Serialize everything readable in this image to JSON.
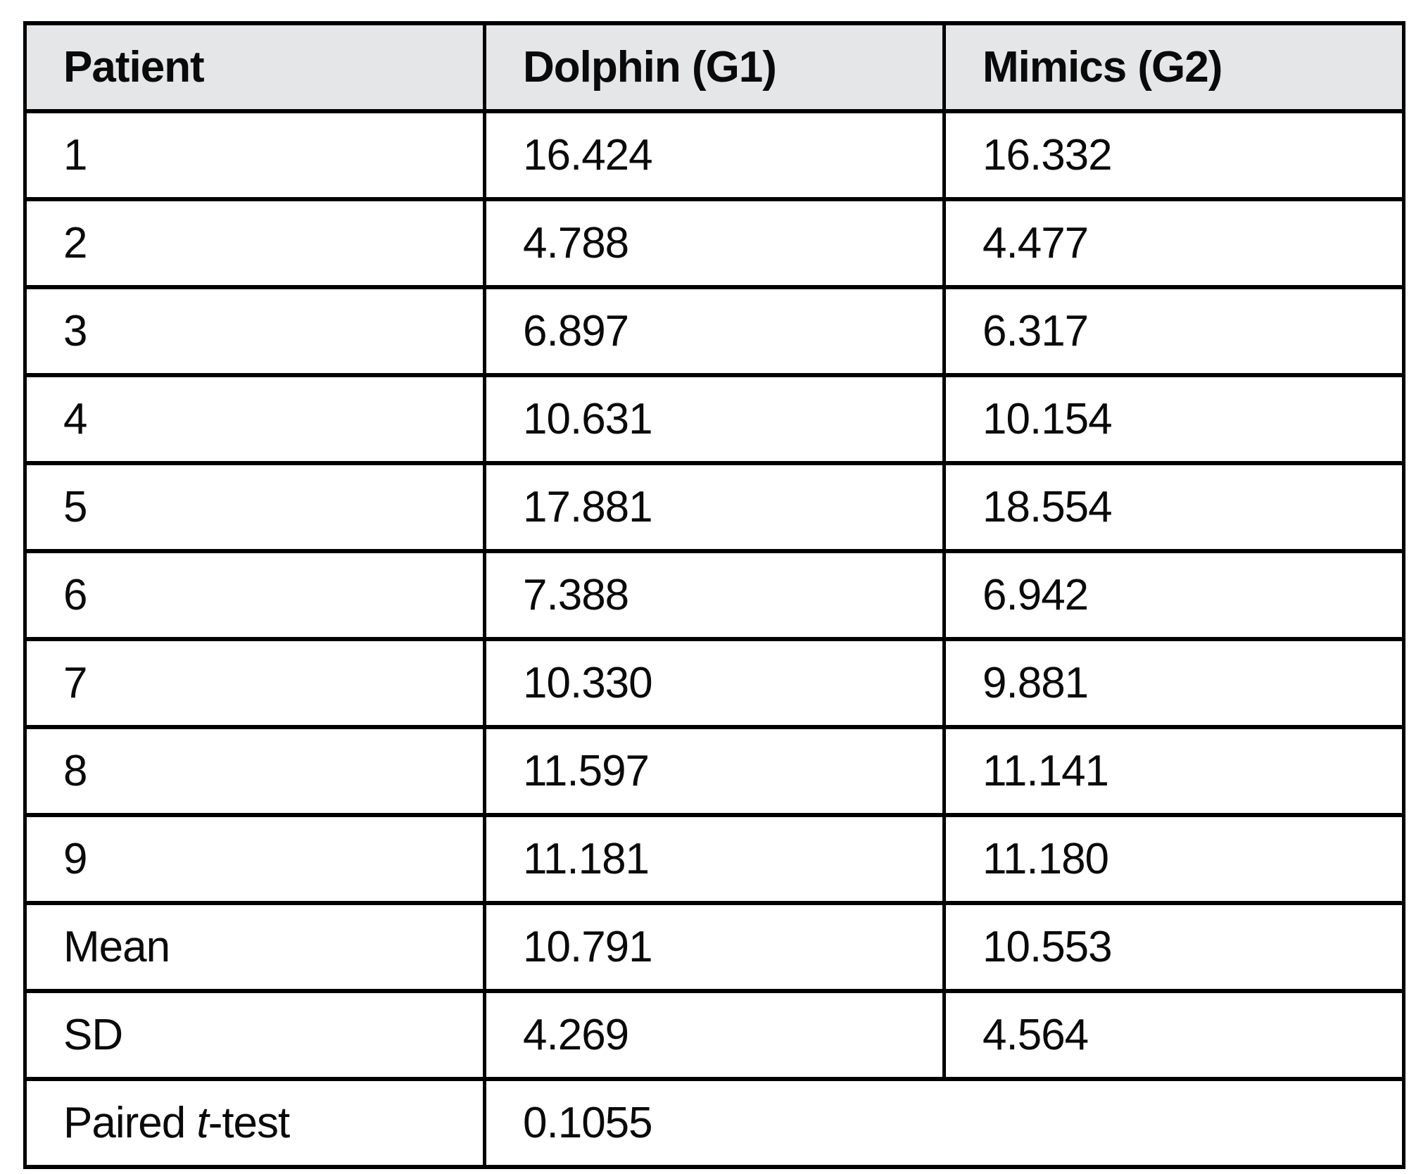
{
  "table": {
    "columns": [
      "Patient",
      "Dolphin (G1)",
      "Mimics (G2)"
    ],
    "rows": [
      {
        "label": "1",
        "g1": "16.424",
        "g2": "16.332"
      },
      {
        "label": "2",
        "g1": "4.788",
        "g2": "4.477"
      },
      {
        "label": "3",
        "g1": "6.897",
        "g2": "6.317"
      },
      {
        "label": "4",
        "g1": "10.631",
        "g2": "10.154"
      },
      {
        "label": "5",
        "g1": "17.881",
        "g2": "18.554"
      },
      {
        "label": "6",
        "g1": "7.388",
        "g2": "6.942"
      },
      {
        "label": "7",
        "g1": "10.330",
        "g2": "9.881"
      },
      {
        "label": "8",
        "g1": "11.597",
        "g2": "11.141"
      },
      {
        "label": "9",
        "g1": "11.181",
        "g2": "11.180"
      },
      {
        "label": "Mean",
        "g1": "10.791",
        "g2": "10.553"
      },
      {
        "label": "SD",
        "g1": "4.269",
        "g2": "4.564"
      }
    ],
    "ttest_row": {
      "label_prefix": "Paired ",
      "label_italic": "t",
      "label_suffix": "-test",
      "value": "0.1055"
    },
    "colors": {
      "header_bg": "#e5e6e8",
      "border": "#000000",
      "text": "#0a0a0a",
      "page_bg": "#ffffff"
    }
  }
}
